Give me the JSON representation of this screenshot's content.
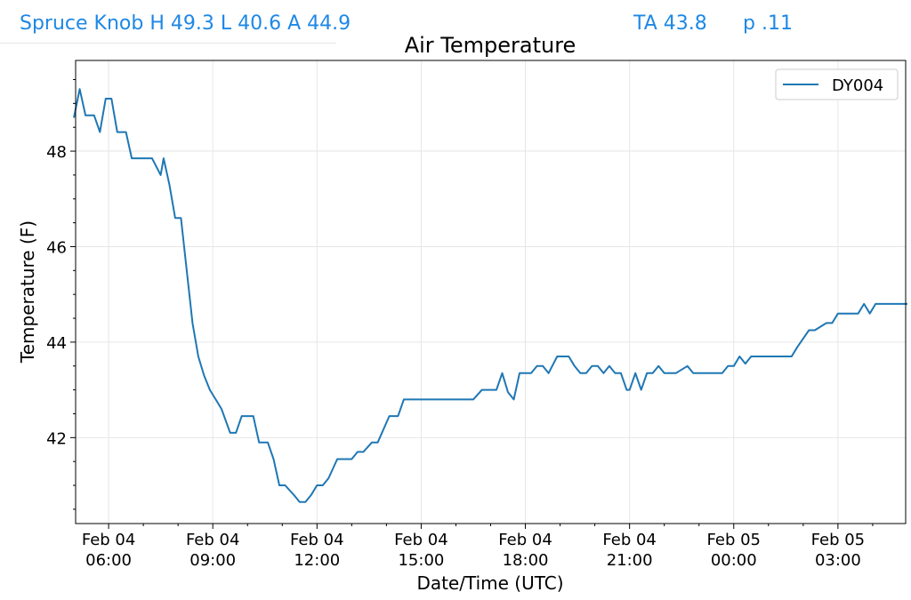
{
  "header": {
    "station_summary": "Spruce Knob H 49.3 L 40.6 A 44.9",
    "ta": "TA 43.8",
    "p": "p .11"
  },
  "chart_data": {
    "type": "line",
    "title": "Air Temperature",
    "xlabel": "Date/Time (UTC)",
    "ylabel": "Temperature (F)",
    "ylim": [
      40.2,
      49.9
    ],
    "xlim_hours": [
      5.05,
      28.95
    ],
    "grid": true,
    "legend_position": "top-right",
    "x_ticks": [
      {
        "date": "Feb 04",
        "time": "06:00"
      },
      {
        "date": "Feb 04",
        "time": "09:00"
      },
      {
        "date": "Feb 04",
        "time": "12:00"
      },
      {
        "date": "Feb 04",
        "time": "15:00"
      },
      {
        "date": "Feb 04",
        "time": "18:00"
      },
      {
        "date": "Feb 04",
        "time": "21:00"
      },
      {
        "date": "Feb 05",
        "time": "00:00"
      },
      {
        "date": "Feb 05",
        "time": "03:00"
      }
    ],
    "y_ticks": [
      42,
      44,
      46,
      48
    ],
    "series": [
      {
        "name": "DY004",
        "color": "#1f77b4",
        "x_time_utc": [
          "Feb 04 05:00",
          "Feb 04 05:10",
          "Feb 04 05:20",
          "Feb 04 05:35",
          "Feb 04 05:45",
          "Feb 04 05:55",
          "Feb 04 06:05",
          "Feb 04 06:15",
          "Feb 04 06:30",
          "Feb 04 06:40",
          "Feb 04 06:50",
          "Feb 04 07:00",
          "Feb 04 07:15",
          "Feb 04 07:30",
          "Feb 04 07:35",
          "Feb 04 07:45",
          "Feb 04 07:55",
          "Feb 04 08:05",
          "Feb 04 08:15",
          "Feb 04 08:25",
          "Feb 04 08:35",
          "Feb 04 08:45",
          "Feb 04 08:55",
          "Feb 04 09:05",
          "Feb 04 09:15",
          "Feb 04 09:30",
          "Feb 04 09:40",
          "Feb 04 09:50",
          "Feb 04 10:00",
          "Feb 04 10:10",
          "Feb 04 10:20",
          "Feb 04 10:35",
          "Feb 04 10:45",
          "Feb 04 10:55",
          "Feb 04 11:05",
          "Feb 04 11:20",
          "Feb 04 11:30",
          "Feb 04 11:40",
          "Feb 04 11:50",
          "Feb 04 12:00",
          "Feb 04 12:10",
          "Feb 04 12:20",
          "Feb 04 12:35",
          "Feb 04 12:45",
          "Feb 04 13:00",
          "Feb 04 13:10",
          "Feb 04 13:20",
          "Feb 04 13:35",
          "Feb 04 13:45",
          "Feb 04 14:05",
          "Feb 04 14:20",
          "Feb 04 14:30",
          "Feb 04 14:45",
          "Feb 04 15:05",
          "Feb 04 15:30",
          "Feb 04 16:00",
          "Feb 04 16:30",
          "Feb 04 16:45",
          "Feb 04 16:55",
          "Feb 04 17:10",
          "Feb 04 17:20",
          "Feb 04 17:30",
          "Feb 04 17:40",
          "Feb 04 17:50",
          "Feb 04 18:00",
          "Feb 04 18:10",
          "Feb 04 18:20",
          "Feb 04 18:30",
          "Feb 04 18:40",
          "Feb 04 18:55",
          "Feb 04 19:05",
          "Feb 04 19:15",
          "Feb 04 19:25",
          "Feb 04 19:35",
          "Feb 04 19:45",
          "Feb 04 19:55",
          "Feb 04 20:05",
          "Feb 04 20:15",
          "Feb 04 20:25",
          "Feb 04 20:35",
          "Feb 04 20:45",
          "Feb 04 20:55",
          "Feb 04 21:00",
          "Feb 04 21:10",
          "Feb 04 21:20",
          "Feb 04 21:30",
          "Feb 04 21:40",
          "Feb 04 21:50",
          "Feb 04 22:00",
          "Feb 04 22:10",
          "Feb 04 22:20",
          "Feb 04 22:40",
          "Feb 04 22:50",
          "Feb 04 23:00",
          "Feb 04 23:20",
          "Feb 04 23:40",
          "Feb 04 23:50",
          "Feb 05 00:00",
          "Feb 05 00:10",
          "Feb 05 00:20",
          "Feb 05 00:30",
          "Feb 05 01:00",
          "Feb 05 01:30",
          "Feb 05 01:40",
          "Feb 05 01:50",
          "Feb 05 02:10",
          "Feb 05 02:20",
          "Feb 05 02:40",
          "Feb 05 02:50",
          "Feb 05 03:00",
          "Feb 05 03:20",
          "Feb 05 03:35",
          "Feb 05 03:45",
          "Feb 05 03:55",
          "Feb 05 04:05",
          "Feb 05 04:30",
          "Feb 05 05:00"
        ],
        "values": [
          48.7,
          49.3,
          48.75,
          48.75,
          48.4,
          49.1,
          49.1,
          48.4,
          48.4,
          47.85,
          47.85,
          47.85,
          47.85,
          47.5,
          47.85,
          47.3,
          46.6,
          46.6,
          45.5,
          44.4,
          43.7,
          43.3,
          43.0,
          42.8,
          42.6,
          42.1,
          42.1,
          42.45,
          42.45,
          42.45,
          41.9,
          41.9,
          41.55,
          41.0,
          41.0,
          40.8,
          40.65,
          40.65,
          40.8,
          41.0,
          41.0,
          41.15,
          41.55,
          41.55,
          41.55,
          41.7,
          41.7,
          41.9,
          41.9,
          42.45,
          42.45,
          42.8,
          42.8,
          42.8,
          42.8,
          42.8,
          42.8,
          43.0,
          43.0,
          43.0,
          43.35,
          42.95,
          42.8,
          43.35,
          43.35,
          43.35,
          43.5,
          43.5,
          43.35,
          43.7,
          43.7,
          43.7,
          43.5,
          43.35,
          43.35,
          43.5,
          43.5,
          43.35,
          43.5,
          43.35,
          43.35,
          43.0,
          43.0,
          43.35,
          43.0,
          43.35,
          43.35,
          43.5,
          43.35,
          43.35,
          43.35,
          43.5,
          43.35,
          43.35,
          43.35,
          43.35,
          43.5,
          43.5,
          43.7,
          43.55,
          43.7,
          43.7,
          43.7,
          43.7,
          43.9,
          44.25,
          44.25,
          44.4,
          44.4,
          44.6,
          44.6,
          44.6,
          44.8,
          44.6,
          44.8,
          44.8,
          44.8
        ]
      }
    ]
  }
}
